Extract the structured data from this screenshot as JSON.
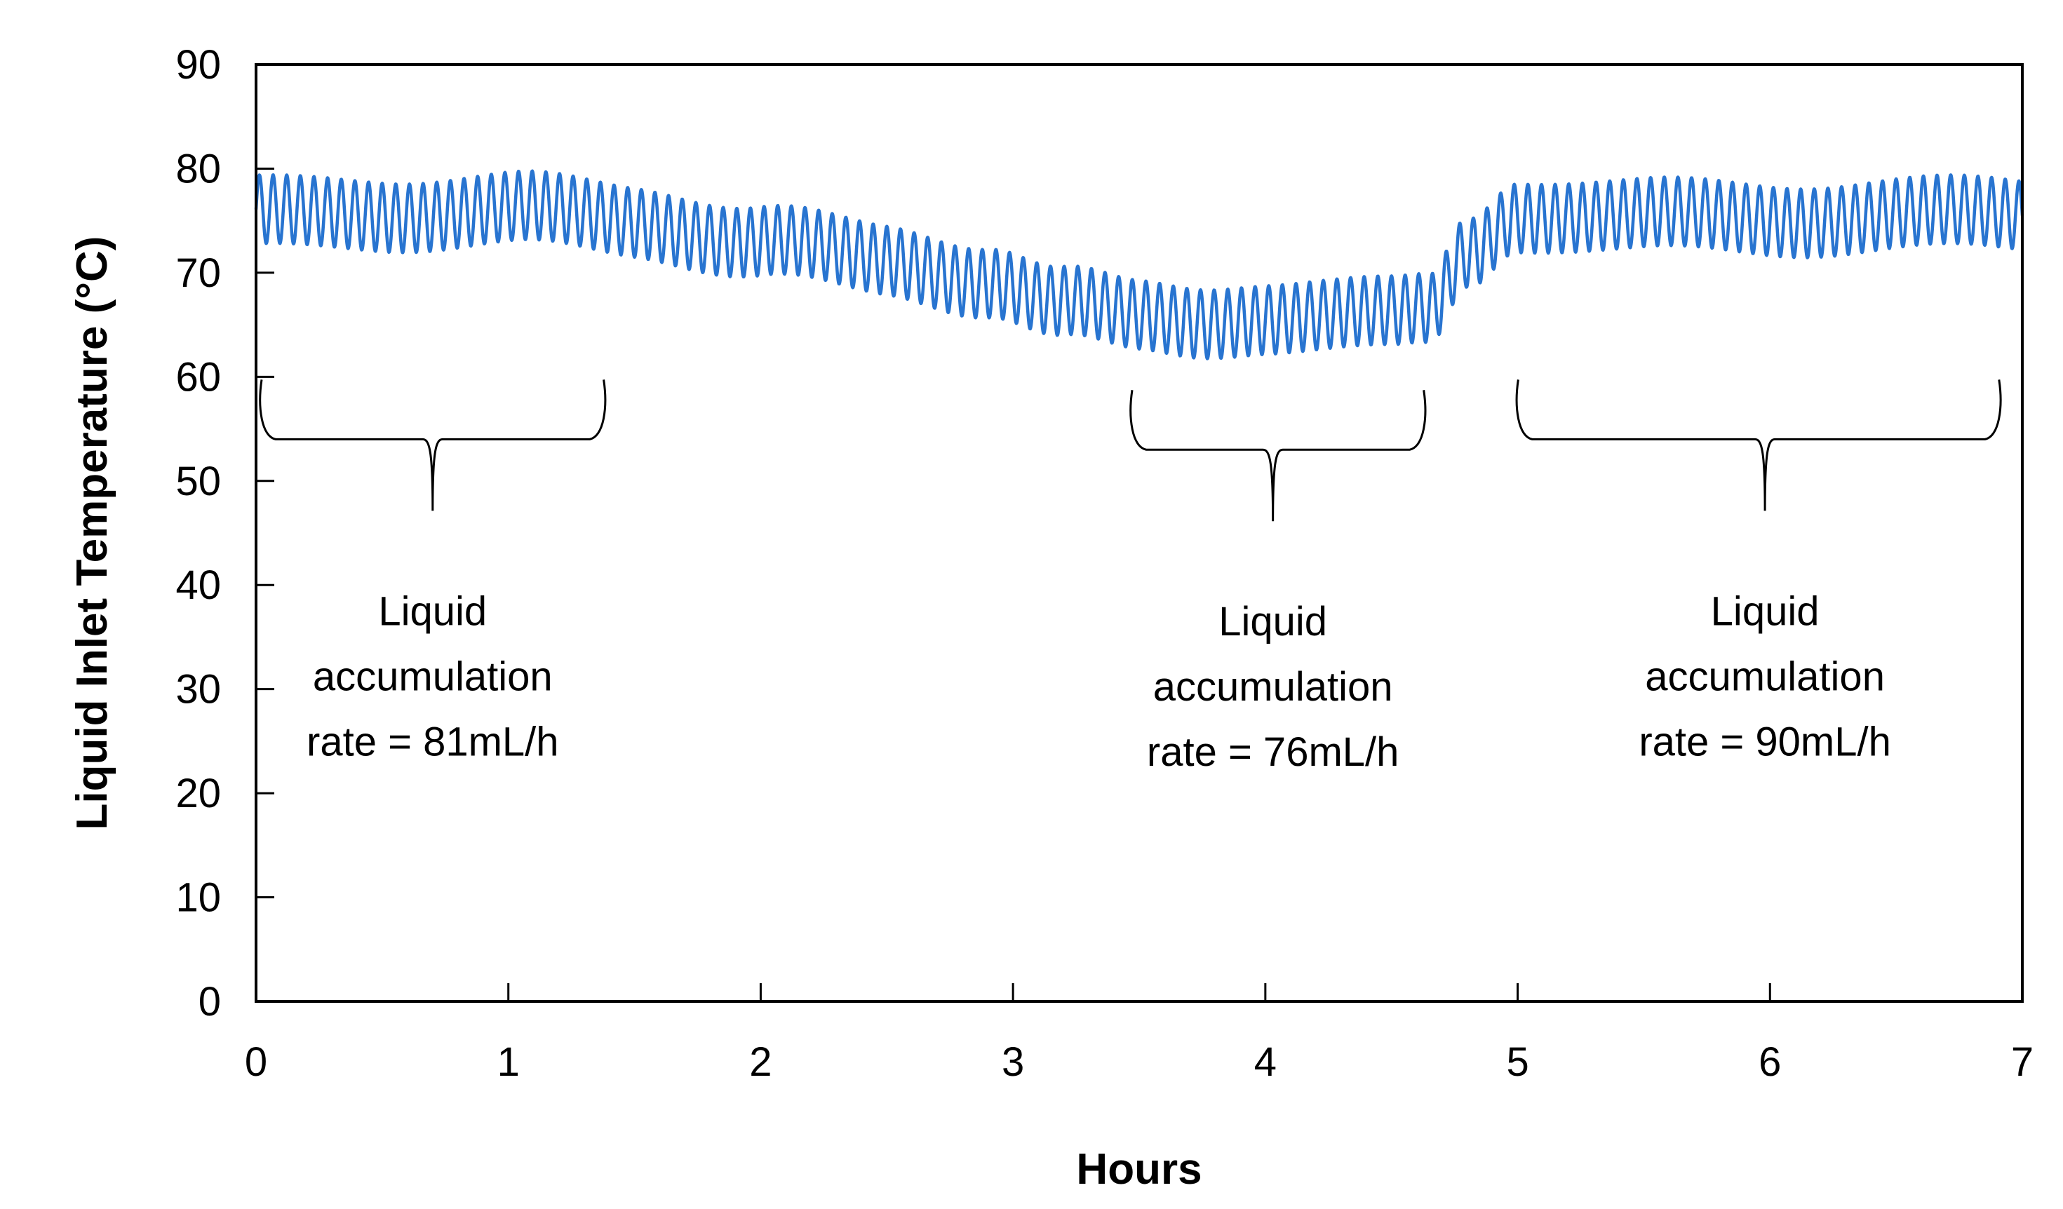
{
  "chart_data": {
    "type": "line",
    "title": "",
    "xlabel": "Hours",
    "ylabel": "Liquid Inlet Temperature (°C)",
    "xlim": [
      0,
      7
    ],
    "ylim": [
      0,
      90
    ],
    "xticks": [
      0,
      1,
      2,
      3,
      4,
      5,
      6,
      7
    ],
    "yticks": [
      0,
      10,
      20,
      30,
      40,
      50,
      60,
      70,
      80,
      90
    ],
    "grid": false,
    "legend": "none",
    "series": [
      {
        "name": "Liquid Inlet Temperature",
        "color": "#2874D0",
        "oscillation": {
          "cycles_per_hour": 18.5,
          "amplitude": 3.3
        },
        "baseline_x": [
          0,
          0.5,
          1.0,
          1.5,
          2.0,
          2.5,
          2.9,
          3.2,
          3.5,
          3.7,
          4.0,
          4.5,
          4.65,
          4.8,
          5.0,
          5.5,
          6.0,
          6.5,
          7.0
        ],
        "baseline_y": [
          75.5,
          75.8,
          76.0,
          75.0,
          73.0,
          71.0,
          69.5,
          67.0,
          65.5,
          65.3,
          66.0,
          65.8,
          66.2,
          72.0,
          75.8,
          75.3,
          75.3,
          75.5,
          75.5
        ]
      }
    ],
    "annotations": [
      {
        "lines": [
          "Liquid",
          "accumulation",
          "rate = 81mL/h"
        ],
        "x_start": 0.0,
        "x_end": 1.4,
        "brace_y": 54,
        "text_x": 0.7
      },
      {
        "lines": [
          "Liquid",
          "accumulation",
          "rate = 76mL/h"
        ],
        "x_start": 3.45,
        "x_end": 4.65,
        "brace_y": 53,
        "text_x": 4.03
      },
      {
        "lines": [
          "Liquid",
          "accumulation",
          "rate = 90mL/h"
        ],
        "x_start": 4.98,
        "x_end": 6.93,
        "brace_y": 54,
        "text_x": 5.98
      }
    ]
  }
}
